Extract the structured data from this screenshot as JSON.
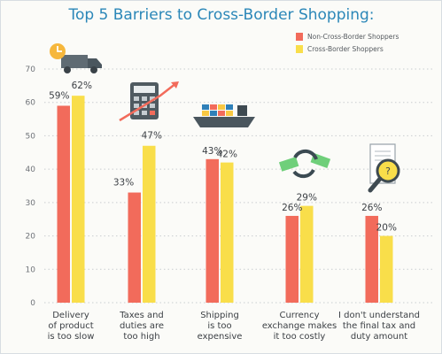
{
  "chart_data": {
    "type": "bar",
    "title": "Top 5 Barriers to Cross-Border Shopping:",
    "categories": [
      [
        "Delivery",
        "of product",
        "is too slow"
      ],
      [
        "Taxes and",
        "duties are",
        "too high"
      ],
      [
        "Shipping",
        "is too",
        "expensive"
      ],
      [
        "Currency",
        "exchange makes",
        "it too costly"
      ],
      [
        "I don't understand",
        "the final tax and",
        "duty amount"
      ]
    ],
    "series": [
      {
        "name": "Non-Cross-Border Shoppers",
        "values": [
          59,
          33,
          43,
          26,
          26
        ],
        "color": "#f26b5b"
      },
      {
        "name": "Cross-Border Shoppers",
        "values": [
          62,
          47,
          42,
          29,
          20
        ],
        "color": "#f9de4a"
      }
    ],
    "ylim": [
      0,
      70
    ],
    "yticks": [
      0,
      10,
      20,
      30,
      40,
      50,
      60,
      70
    ],
    "grid": "dotted horizontal",
    "legend_position": "top-right",
    "value_suffix": "%",
    "icons": [
      "truck-with-clock-icon",
      "calculator-with-rising-arrow-icon",
      "cargo-ship-icon",
      "currency-exchange-icon",
      "receipt-with-magnifier-icon"
    ]
  }
}
